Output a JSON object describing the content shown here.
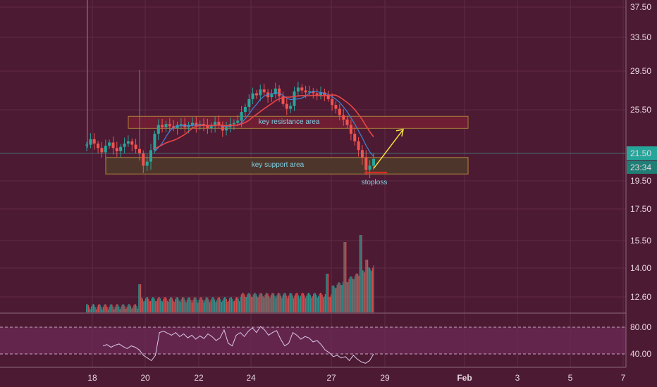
{
  "chart_data": {
    "type": "candlestick",
    "price_axis": {
      "ticks": [
        "37.50",
        "33.50",
        "29.50",
        "25.50",
        "19.50",
        "17.50",
        "15.50",
        "14.00",
        "12.60"
      ],
      "current_price_label": "21.50",
      "countdown_label": "23:34",
      "range": [
        12.0,
        38.0
      ]
    },
    "rsi_axis": {
      "ticks": [
        "80.00",
        "40.00"
      ],
      "upper_band": 80,
      "lower_band": 40
    },
    "x_axis": {
      "ticks": [
        "18",
        "20",
        "22",
        "24",
        "27",
        "29",
        "Feb",
        "3",
        "5",
        "7"
      ]
    },
    "annotations": {
      "resistance_label": "key resistance area",
      "support_label": "key support area",
      "stoploss_label": "stoploss",
      "resistance_range": [
        23.8,
        24.9
      ],
      "support_range": [
        20.0,
        21.2
      ],
      "stoploss_level": 20.1,
      "arrow_target": 23.7
    },
    "price_path": [
      22.3,
      22.8,
      22.4,
      22.0,
      21.6,
      22.2,
      22.5,
      22.0,
      21.7,
      22.1,
      22.4,
      22.6,
      22.3,
      21.9,
      21.5,
      20.6,
      20.9,
      21.8,
      23.3,
      24.1,
      23.9,
      24.2,
      24.0,
      23.8,
      24.1,
      24.2,
      23.9,
      24.1,
      24.3,
      24.0,
      24.2,
      24.1,
      23.8,
      24.0,
      24.4,
      24.1,
      23.6,
      23.9,
      24.2,
      24.3,
      24.5,
      25.3,
      25.8,
      26.6,
      27.2,
      27.0,
      27.6,
      27.3,
      26.8,
      27.1,
      27.7,
      26.9,
      26.1,
      25.6,
      25.9,
      27.4,
      27.8,
      27.5,
      27.3,
      27.4,
      27.2,
      27.0,
      27.3,
      27.0,
      26.6,
      26.0,
      25.6,
      25.0,
      24.6,
      24.1,
      23.3,
      22.6,
      21.8,
      21.2,
      20.3,
      20.6,
      21.1
    ],
    "rsi_path": [
      52,
      54,
      50,
      53,
      55,
      51,
      48,
      52,
      50,
      46,
      38,
      34,
      30,
      38,
      72,
      74,
      71,
      68,
      72,
      66,
      70,
      64,
      68,
      62,
      67,
      63,
      70,
      66,
      60,
      64,
      76,
      56,
      52,
      68,
      72,
      66,
      74,
      79,
      72,
      81,
      76,
      68,
      72,
      75,
      62,
      52,
      56,
      72,
      68,
      62,
      66,
      64,
      58,
      60,
      54,
      46,
      42,
      36,
      38,
      34,
      36,
      30,
      38,
      32,
      28,
      26,
      30,
      40
    ],
    "colors": {
      "background": "#4d1a33",
      "rsi_band": "#6e2b58",
      "up": "#26a69a",
      "down": "#ef5350",
      "ma_fast": "#3f86d6",
      "ma_slow": "#e84546",
      "rsi_line": "#d9c8e8",
      "resistance_fill": "#7a1f33",
      "support_fill": "#4d3a2a",
      "zone_border": "#c8a03c",
      "zone_text": "#7fd1e6",
      "arrow": "#f5e042",
      "stoploss": "#e32929",
      "price_label_bg": "#26a69a"
    }
  }
}
